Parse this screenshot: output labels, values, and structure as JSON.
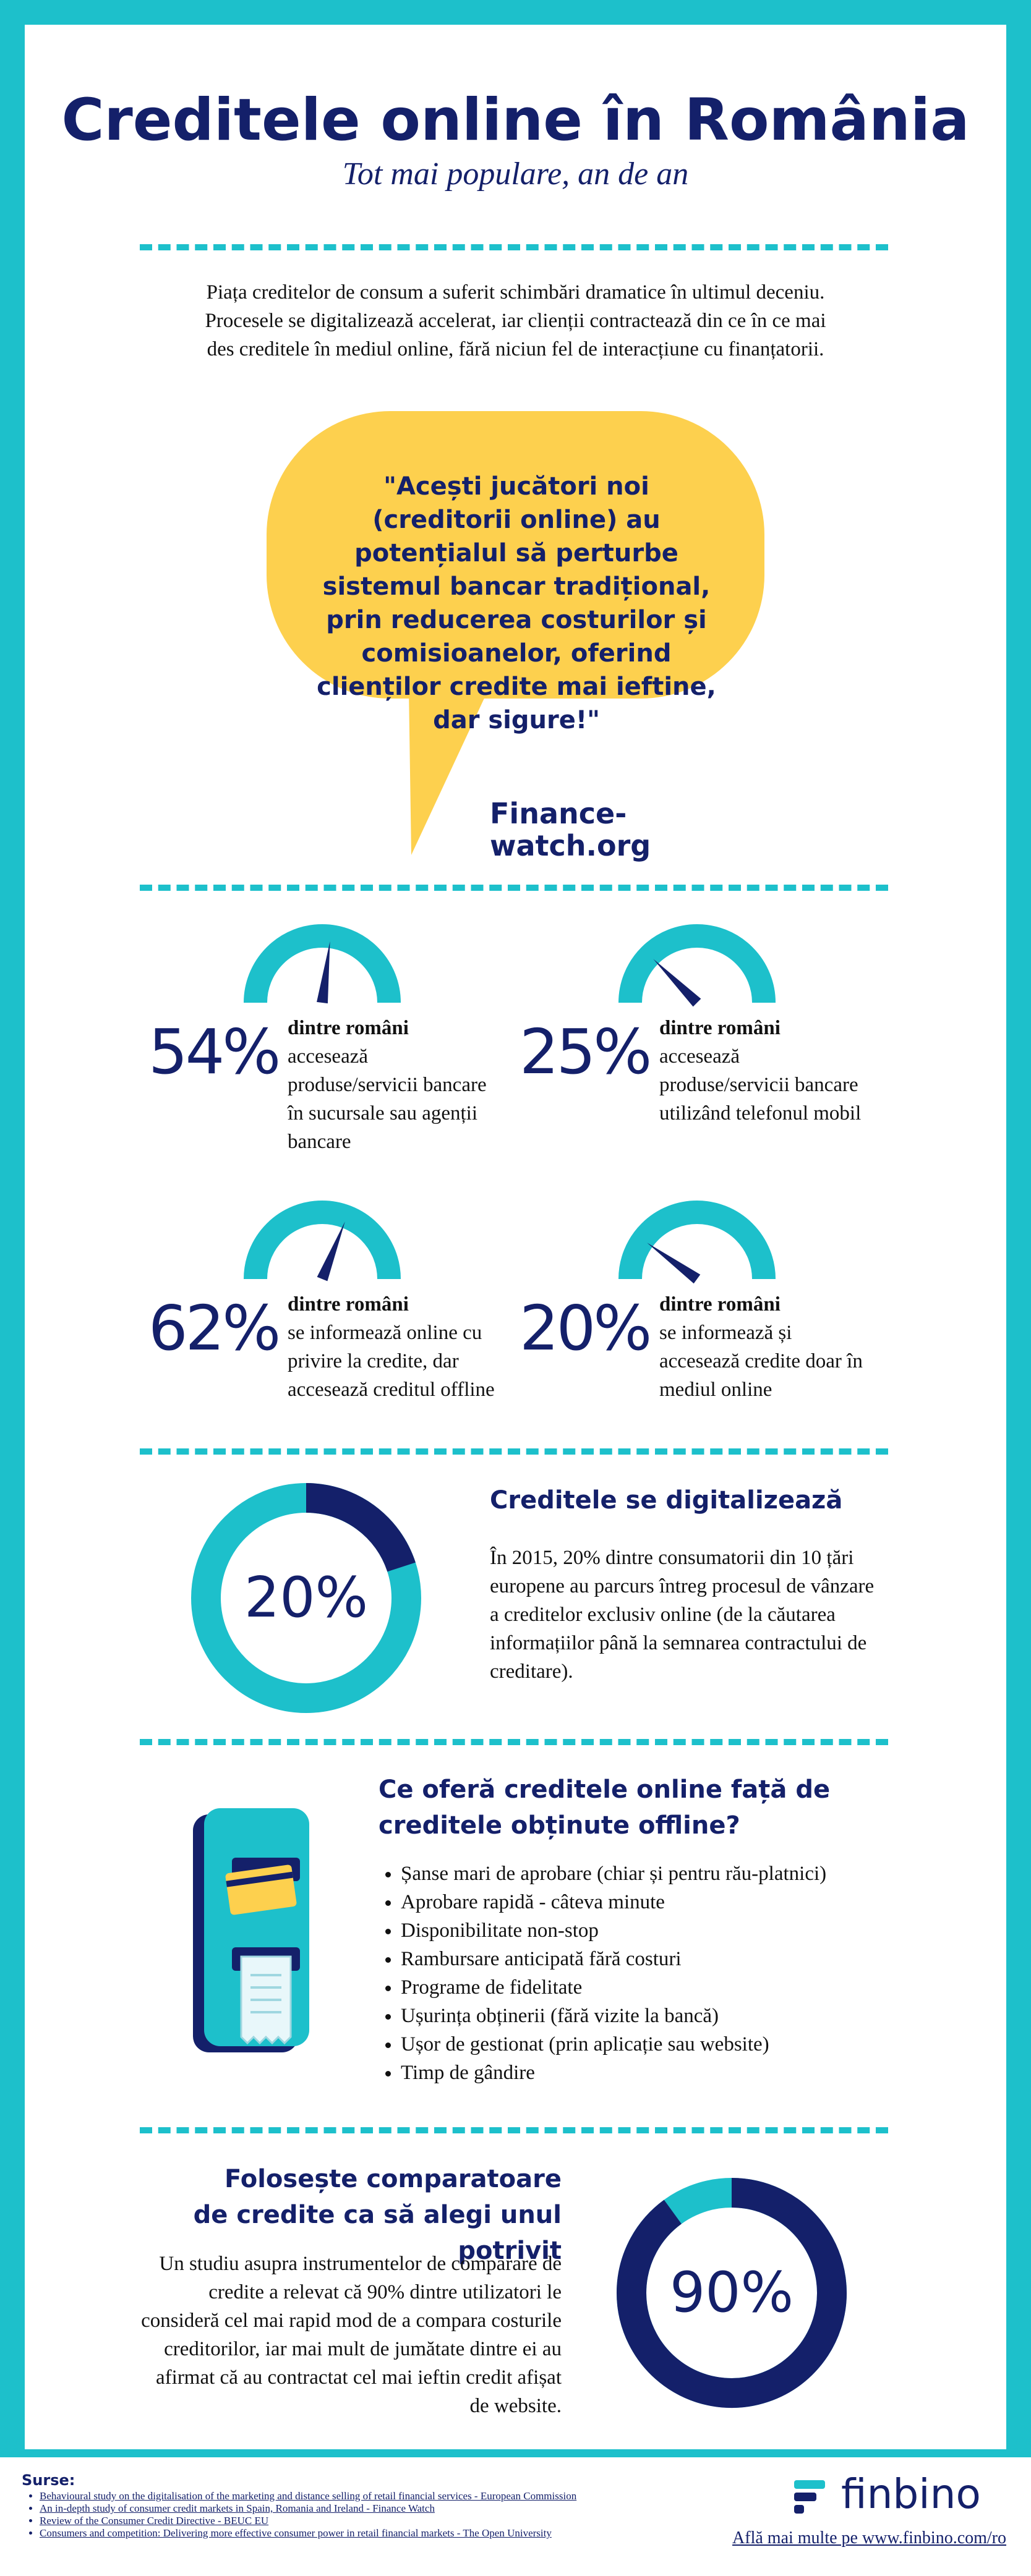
{
  "header": {
    "title": "Creditele online în România",
    "subtitle": "Tot mai populare, an de an"
  },
  "intro": "Piața creditelor de consum a suferit schimbări dramatice în ultimul deceniu. Procesele se digitalizează accelerat, iar clienții contractează din ce în ce mai des creditele în mediul online, fără niciun fel de interacțiune cu finanțatorii.",
  "quote": {
    "text": "\"Acești jucători noi (creditorii online) au potențialul să perturbe sistemul bancar tradițional, prin reducerea costurilor și comisioanelor, oferind clienților credite mai ieftine, dar sigure!\"",
    "source": "Finance-watch.org"
  },
  "stats": [
    {
      "value": 54,
      "value_label": "54%",
      "heading": "dintre români",
      "text": "accesează produse/servicii bancare în sucursale sau agenții bancare"
    },
    {
      "value": 25,
      "value_label": "25%",
      "heading": "dintre români",
      "text": "accesează produse/servicii bancare utilizând telefonul mobil"
    },
    {
      "value": 62,
      "value_label": "62%",
      "heading": "dintre români",
      "text": "se informează online cu privire la credite, dar accesează creditul offline"
    },
    {
      "value": 20,
      "value_label": "20%",
      "heading": "dintre români",
      "text": "se informează și accesează credite doar în mediul online"
    }
  ],
  "digital": {
    "title": "Creditele se digitalizează",
    "value": 20,
    "value_label": "20%",
    "text": "În 2015, 20% dintre consumatorii din 10 țări europene au parcurs întreg procesul de vânzare a creditelor exclusiv online (de la căutarea informațiilor până la semnarea contractului de creditare)."
  },
  "offer": {
    "title": "Ce oferă creditele online față de creditele obținute offline?",
    "items": [
      "Șanse mari de aprobare (chiar și pentru rău-platnici)",
      "Aprobare rapidă - câteva minute",
      "Disponibilitate non-stop",
      "Rambursare anticipată fără costuri",
      "Programe de fidelitate",
      "Ușurința obținerii (fără vizite la bancă)",
      "Ușor de gestionat (prin aplicație sau website)",
      "Timp de gândire"
    ]
  },
  "compare": {
    "title": "Folosește comparatoare de credite ca să alegi unul potrivit",
    "text": "Un studiu asupra instrumentelor de comparare de credite a relevat că 90% dintre utilizatori le consideră cel mai rapid mod de a compara costurile creditorilor, iar mai mult de jumătate dintre ei au afirmat că au contractat cel mai ieftin credit afișat de website.",
    "value": 90,
    "value_label": "90%"
  },
  "footer": {
    "sources_title": "Surse:",
    "sources": [
      "Behavioural study on the digitalisation of the marketing and distance selling of retail financial services - European Commission",
      "An in-depth study of consumer credit markets in Spain, Romania and Ireland - Finance Watch",
      "Review of the Consumer Credit Directive - BEUC EU",
      "Consumers and competition: Delivering more effective consumer power in retail financial markets - The Open University"
    ],
    "brand": "finbino",
    "link": "Află mai multe pe www.finbino.com/ro"
  }
}
